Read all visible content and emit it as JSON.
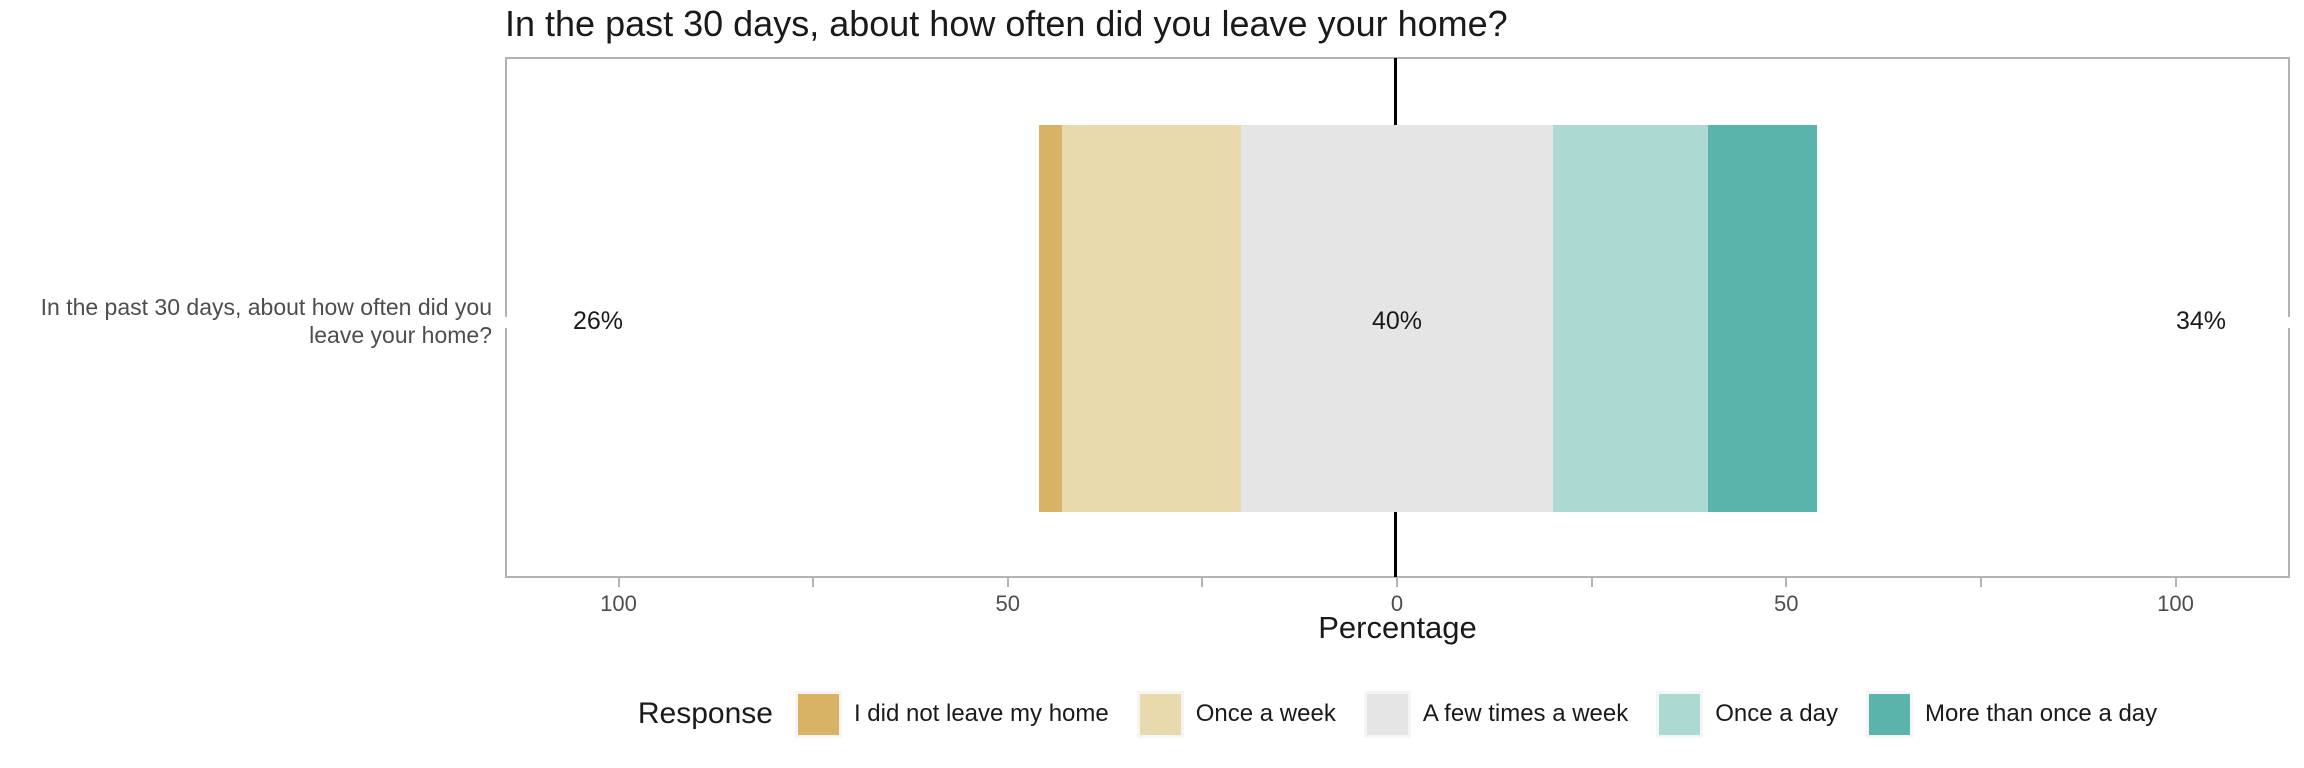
{
  "title": "In the past 30 days, about how often did you leave your home?",
  "category_label_lines": {
    "line1": "In the past 30 days, about how often did you",
    "line2": "leave your home?"
  },
  "chart_data": {
    "type": "bar",
    "subtype": "diverging-stacked-likert",
    "orientation": "horizontal",
    "title": "In the past 30 days, about how often did you leave your home?",
    "categories": [
      "In the past 30 days, about how often did you leave your home?"
    ],
    "series": [
      {
        "name": "I did not leave my home",
        "values": [
          3
        ],
        "color": "#D8B365"
      },
      {
        "name": "Once a week",
        "values": [
          23
        ],
        "color": "#E9DAAE"
      },
      {
        "name": "A few times a week",
        "values": [
          40
        ],
        "color": "#E5E5E5"
      },
      {
        "name": "Once a day",
        "values": [
          20
        ],
        "color": "#ACD9D2"
      },
      {
        "name": "More than once a day",
        "values": [
          14
        ],
        "color": "#5AB4AC"
      }
    ],
    "neutral_series": "A few times a week",
    "summary_labels": {
      "low": "26%",
      "neutral": "40%",
      "high": "34%"
    },
    "xlabel": "Percentage",
    "ylabel": "",
    "xlim": [
      -114.6,
      114.6
    ],
    "x_ticks": [
      -100,
      -75,
      -50,
      -25,
      0,
      25,
      50,
      75,
      100
    ],
    "x_tick_labels": [
      "100",
      "",
      "50",
      "",
      "0",
      "",
      "50",
      "",
      "100"
    ],
    "legend_title": "Response",
    "legend_position": "bottom",
    "grid": false,
    "zero_reference_line": true
  },
  "colors": {
    "panel_border": "#b3b3b3",
    "tick_mark": "#b3b3b3",
    "axis_text": "#4d4d4d",
    "zero_line": "#000000",
    "background": "#ffffff"
  }
}
